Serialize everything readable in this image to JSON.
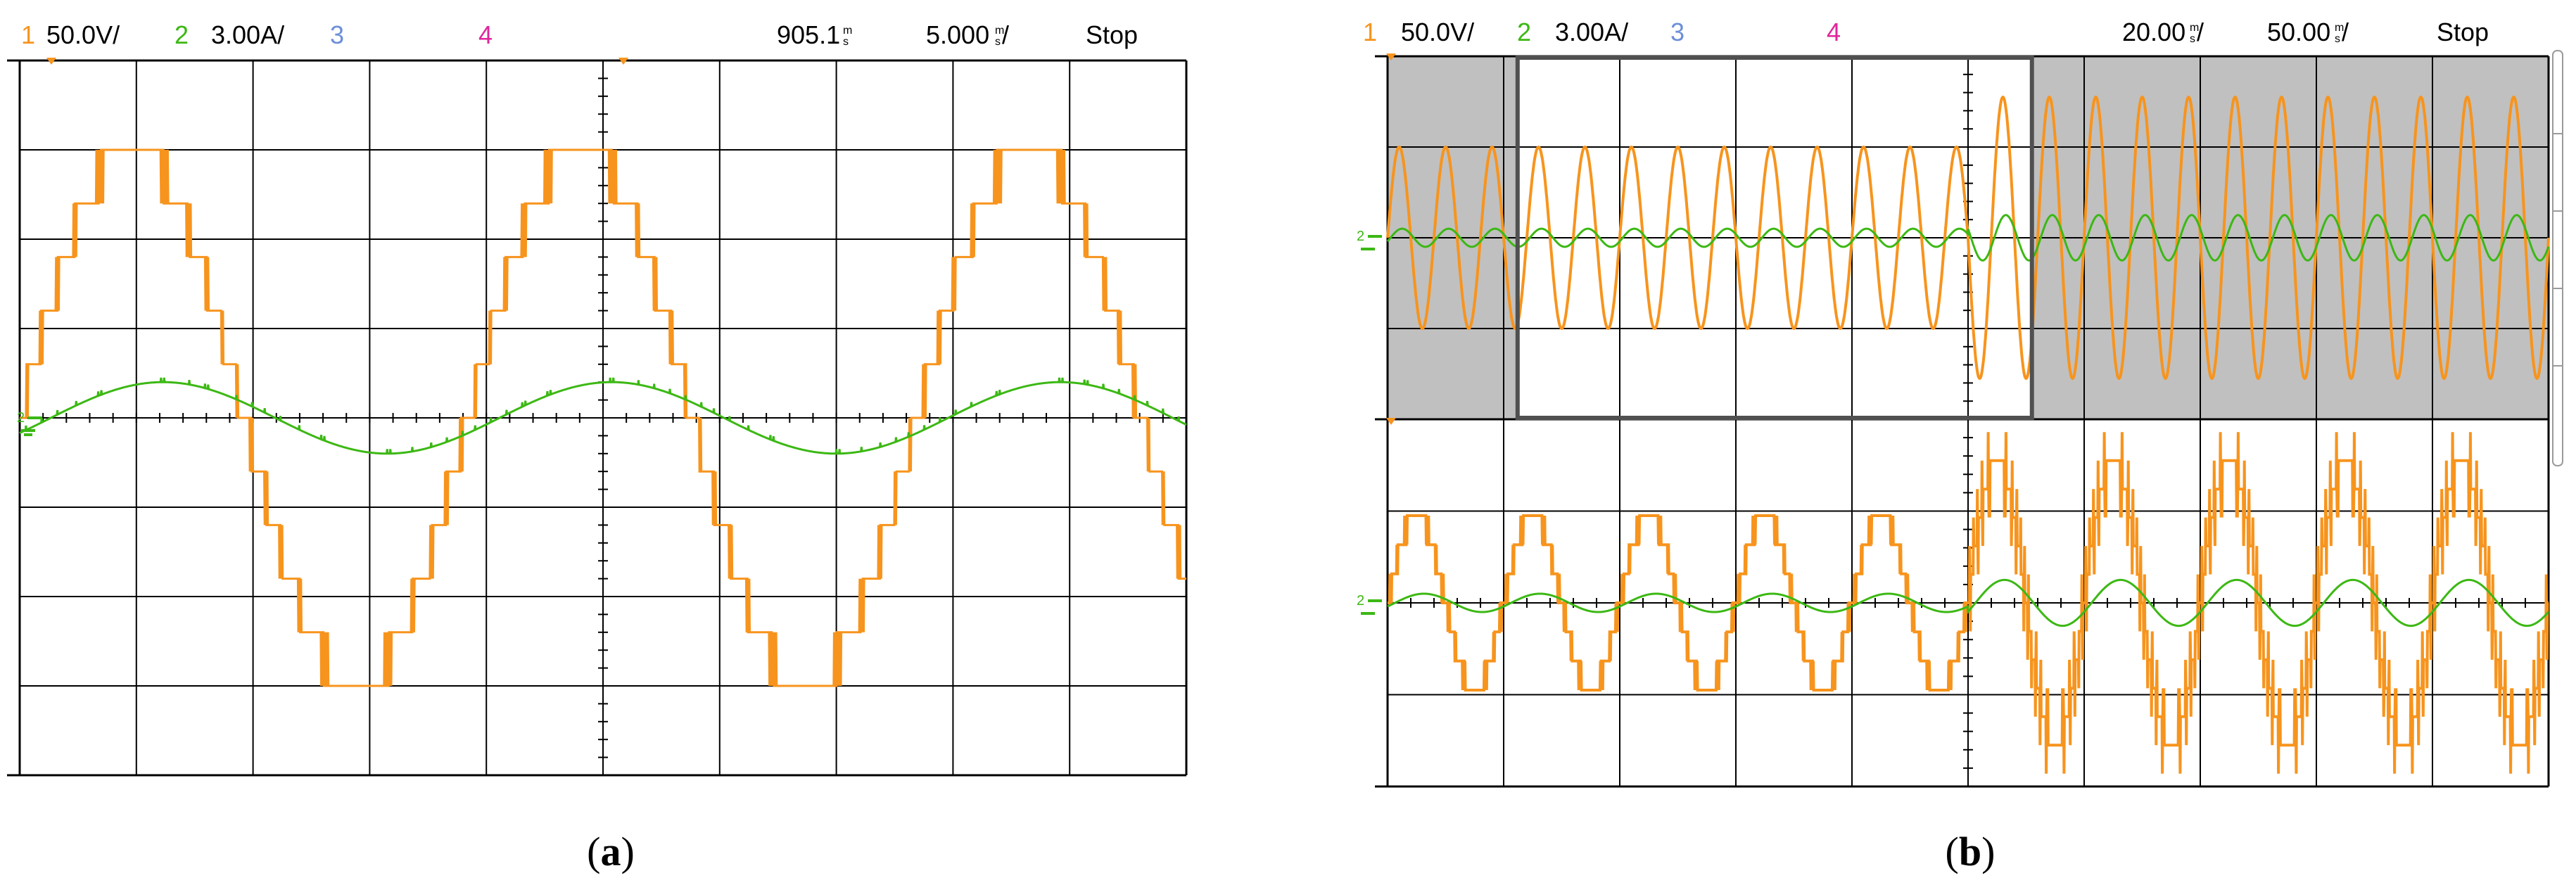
{
  "panels": [
    {
      "id": "a",
      "caption_open": "(",
      "caption_letter": "a",
      "caption_close": ")",
      "header": {
        "ch1": "1",
        "ch1_scale": "50.0V/",
        "ch2": "2",
        "ch2_scale": "3.00A/",
        "ch3": "3",
        "ch4": "4",
        "trig_pos": "905.1",
        "timebase": "5.000",
        "state": "Stop"
      }
    },
    {
      "id": "b",
      "caption_open": "(",
      "caption_letter": "b",
      "caption_close": ")",
      "header": {
        "ch1": "1",
        "ch1_scale": "50.0V/",
        "ch2": "2",
        "ch2_scale": "3.00A/",
        "ch3": "3",
        "ch4": "4",
        "trig_pos": "20.00",
        "timebase": "50.00",
        "state": "Stop"
      }
    }
  ],
  "colors": {
    "ch1": "#f7941d",
    "ch2": "#3cb814",
    "ch3": "#6d8fd9",
    "ch4": "#e0269b",
    "grid": "#000000",
    "overview_shade": "#c0c0c0",
    "zoom_box": "#505050"
  },
  "chart_data": [
    {
      "type": "line",
      "panel": "a",
      "grid_divisions": {
        "x": 10,
        "y": 8
      },
      "x_unit_per_div_ms": 5.0,
      "x_range_div": [
        0,
        10
      ],
      "y_range_div": [
        -4,
        4
      ],
      "series": [
        {
          "channel": "1",
          "scale_per_div": "50.0V/",
          "waveform": "multilevel staircase",
          "amplitude_div": 3.0,
          "levels": 11,
          "periods_shown": 2.6,
          "phase_deg": 0,
          "offset_div": 0
        },
        {
          "channel": "2",
          "scale_per_div": "3.00A/",
          "waveform": "sinusoid",
          "amplitude_div": 0.4,
          "periods_shown": 2.6,
          "phase_deg": -25,
          "offset_div": 0
        }
      ]
    },
    {
      "type": "line",
      "panel": "b",
      "subplot": "overview",
      "grid_divisions": {
        "x": 10,
        "y": 4
      },
      "x_unit_per_div_ms": 50.0,
      "x_range_div": [
        0,
        10
      ],
      "y_range_div": [
        -2,
        2
      ],
      "step_at_div": 5.0,
      "zoom_window_div": [
        5.55,
        1.99
      ],
      "series": [
        {
          "channel": "1",
          "waveform": "staircase, amplitude step",
          "amplitude_div_before": 1.0,
          "amplitude_div_after": 1.55,
          "periods_shown": 25
        },
        {
          "channel": "2",
          "waveform": "sinusoid, amplitude step",
          "amplitude_div_before": 0.1,
          "amplitude_div_after": 0.25,
          "periods_shown": 25
        }
      ]
    },
    {
      "type": "line",
      "panel": "b",
      "subplot": "zoom",
      "grid_divisions": {
        "x": 10,
        "y": 4
      },
      "x_unit_per_div_ms": 20.0,
      "x_range_div": [
        0,
        10
      ],
      "y_range_div": [
        -2,
        2
      ],
      "step_at_div": 5.0,
      "series": [
        {
          "channel": "1",
          "waveform": "multilevel staircase, amplitude step",
          "amplitude_div_before": 0.95,
          "amplitude_div_after": 1.55,
          "periods_shown": 10
        },
        {
          "channel": "2",
          "waveform": "sinusoid, amplitude step",
          "amplitude_div_before": 0.1,
          "amplitude_div_after": 0.25,
          "periods_shown": 10
        }
      ]
    }
  ]
}
